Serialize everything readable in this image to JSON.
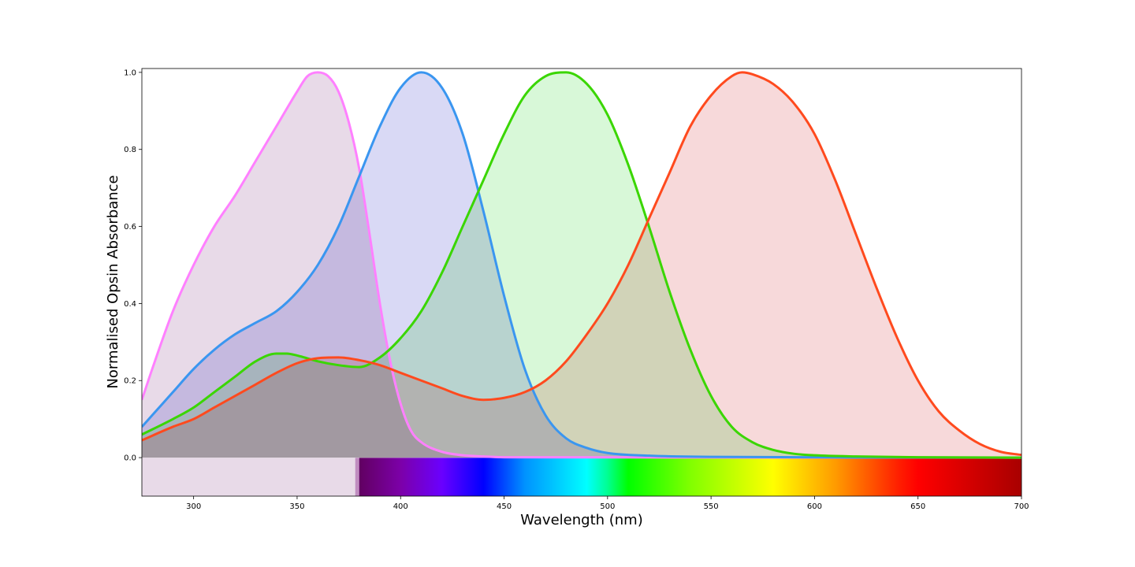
{
  "chart_data": {
    "type": "line",
    "xlabel": "Wavelength (nm)",
    "ylabel": "Normalised Opsin Absorbance",
    "xlim": [
      275,
      700
    ],
    "ylim": [
      -0.1,
      1.01
    ],
    "grid": false,
    "legend": "none",
    "x_ticks": [
      {
        "value": 300,
        "label": "300"
      },
      {
        "value": 350,
        "label": "350"
      },
      {
        "value": 400,
        "label": "400"
      },
      {
        "value": 450,
        "label": "450"
      },
      {
        "value": 500,
        "label": "500"
      },
      {
        "value": 550,
        "label": "550"
      },
      {
        "value": 600,
        "label": "600"
      },
      {
        "value": 650,
        "label": "650"
      },
      {
        "value": 700,
        "label": "700"
      }
    ],
    "y_ticks": [
      {
        "value": 0.0,
        "label": "0.0"
      },
      {
        "value": 0.2,
        "label": "0.2"
      },
      {
        "value": 0.4,
        "label": "0.4"
      },
      {
        "value": 0.6,
        "label": "0.6"
      },
      {
        "value": 0.8,
        "label": "0.8"
      },
      {
        "value": 1.0,
        "label": "1.0"
      }
    ],
    "series": [
      {
        "key": "uv-opsin",
        "color": "#ff80ff",
        "fill": "#e8dae8",
        "x": [
          275,
          280,
          290,
          300,
          310,
          320,
          330,
          340,
          350,
          355,
          360,
          365,
          370,
          375,
          380,
          385,
          390,
          395,
          400,
          405,
          410,
          420,
          430,
          440,
          450,
          700
        ],
        "y": [
          0.15,
          0.23,
          0.38,
          0.5,
          0.6,
          0.68,
          0.77,
          0.86,
          0.95,
          0.99,
          1.0,
          0.99,
          0.95,
          0.87,
          0.75,
          0.58,
          0.4,
          0.25,
          0.14,
          0.07,
          0.04,
          0.015,
          0.006,
          0.003,
          0.001,
          0.0
        ]
      },
      {
        "key": "s-opsin",
        "color": "#3a96f0",
        "fill": "#d9d9f5",
        "x": [
          275,
          280,
          290,
          300,
          310,
          320,
          330,
          340,
          350,
          360,
          370,
          380,
          390,
          400,
          410,
          420,
          430,
          440,
          450,
          460,
          470,
          480,
          490,
          500,
          520,
          550,
          700
        ],
        "y": [
          0.08,
          0.11,
          0.17,
          0.23,
          0.28,
          0.32,
          0.35,
          0.38,
          0.43,
          0.5,
          0.6,
          0.73,
          0.86,
          0.96,
          1.0,
          0.96,
          0.84,
          0.64,
          0.42,
          0.23,
          0.11,
          0.05,
          0.025,
          0.012,
          0.005,
          0.002,
          0.0
        ]
      },
      {
        "key": "m-opsin",
        "color": "#3ad600",
        "fill": "#d8f8d8",
        "x": [
          275,
          290,
          300,
          310,
          320,
          330,
          340,
          345,
          350,
          360,
          370,
          380,
          390,
          400,
          410,
          420,
          430,
          440,
          450,
          460,
          470,
          480,
          490,
          500,
          510,
          520,
          530,
          540,
          550,
          560,
          570,
          580,
          590,
          600,
          620,
          650,
          700
        ],
        "y": [
          0.06,
          0.1,
          0.13,
          0.17,
          0.21,
          0.25,
          0.27,
          0.27,
          0.265,
          0.25,
          0.24,
          0.235,
          0.26,
          0.31,
          0.38,
          0.48,
          0.6,
          0.72,
          0.84,
          0.94,
          0.99,
          1.0,
          0.97,
          0.89,
          0.76,
          0.6,
          0.43,
          0.28,
          0.16,
          0.08,
          0.04,
          0.02,
          0.01,
          0.006,
          0.003,
          0.001,
          0.0
        ]
      },
      {
        "key": "l-opsin",
        "color": "#ff4a1e",
        "fill": "#f7d9da",
        "x": [
          275,
          290,
          300,
          310,
          320,
          330,
          340,
          350,
          360,
          370,
          380,
          390,
          400,
          410,
          420,
          430,
          440,
          450,
          460,
          470,
          480,
          490,
          500,
          510,
          520,
          530,
          540,
          550,
          560,
          565,
          570,
          580,
          590,
          600,
          610,
          620,
          630,
          640,
          650,
          660,
          670,
          680,
          690,
          700
        ],
        "y": [
          0.045,
          0.08,
          0.1,
          0.13,
          0.16,
          0.19,
          0.22,
          0.245,
          0.258,
          0.26,
          0.253,
          0.24,
          0.22,
          0.2,
          0.18,
          0.16,
          0.15,
          0.155,
          0.17,
          0.2,
          0.25,
          0.32,
          0.4,
          0.5,
          0.62,
          0.74,
          0.86,
          0.94,
          0.99,
          1.0,
          0.995,
          0.97,
          0.92,
          0.84,
          0.72,
          0.58,
          0.44,
          0.31,
          0.2,
          0.12,
          0.07,
          0.035,
          0.015,
          0.007
        ]
      }
    ],
    "spectrum_bar": {
      "ymin": -0.1,
      "ymax": 0.0,
      "uv_range": [
        275,
        380
      ],
      "uv_color": "#e8dae8",
      "uv_edge_color": "#c08dc0",
      "visible_range": [
        380,
        700
      ],
      "gradient_stops": [
        {
          "nm": 380,
          "color": "#610061"
        },
        {
          "nm": 400,
          "color": "#7c00a8"
        },
        {
          "nm": 420,
          "color": "#6a00ff"
        },
        {
          "nm": 440,
          "color": "#0000ff"
        },
        {
          "nm": 460,
          "color": "#0092ff"
        },
        {
          "nm": 490,
          "color": "#00ffff"
        },
        {
          "nm": 500,
          "color": "#00ff92"
        },
        {
          "nm": 510,
          "color": "#00ff00"
        },
        {
          "nm": 540,
          "color": "#81ff00"
        },
        {
          "nm": 580,
          "color": "#ffff00"
        },
        {
          "nm": 610,
          "color": "#ff9b00"
        },
        {
          "nm": 640,
          "color": "#ff2100"
        },
        {
          "nm": 650,
          "color": "#ff0000"
        },
        {
          "nm": 700,
          "color": "#a80000"
        }
      ]
    }
  }
}
